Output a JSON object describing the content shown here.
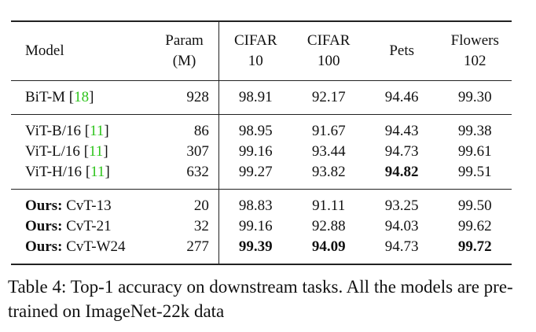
{
  "columns": [
    {
      "line1": "Model",
      "line2": ""
    },
    {
      "line1": "Param",
      "line2": "(M)"
    },
    {
      "line1": "CIFAR",
      "line2": "10"
    },
    {
      "line1": "CIFAR",
      "line2": "100"
    },
    {
      "line1": "Pets",
      "line2": ""
    },
    {
      "line1": "Flowers",
      "line2": "102"
    }
  ],
  "rows": [
    {
      "prefix": "",
      "name": "BiT-M ",
      "open": "[",
      "ref": "18",
      "close": "]",
      "param": "928",
      "cifar10": "98.91",
      "cifar100": "92.17",
      "pets": "94.46",
      "flowers": "99.30"
    },
    {
      "prefix": "",
      "name": "ViT-B/16 ",
      "open": "[",
      "ref": "11",
      "close": "]",
      "param": "86",
      "cifar10": "98.95",
      "cifar100": "91.67",
      "pets": "94.43",
      "flowers": "99.38"
    },
    {
      "prefix": "",
      "name": "ViT-L/16 ",
      "open": "[",
      "ref": "11",
      "close": "]",
      "param": "307",
      "cifar10": "99.16",
      "cifar100": "93.44",
      "pets": "94.73",
      "flowers": "99.61"
    },
    {
      "prefix": "",
      "name": "ViT-H/16 ",
      "open": "[",
      "ref": "11",
      "close": "]",
      "param": "632",
      "cifar10": "99.27",
      "cifar100": "93.82",
      "pets": "94.82",
      "flowers": "99.51"
    },
    {
      "prefix": "Ours:",
      "name": " CvT-13",
      "open": "",
      "ref": "",
      "close": "",
      "param": "20",
      "cifar10": "98.83",
      "cifar100": "91.11",
      "pets": "93.25",
      "flowers": "99.50"
    },
    {
      "prefix": "Ours:",
      "name": " CvT-21",
      "open": "",
      "ref": "",
      "close": "",
      "param": "32",
      "cifar10": "99.16",
      "cifar100": "92.88",
      "pets": "94.03",
      "flowers": "99.62"
    },
    {
      "prefix": "Ours:",
      "name": " CvT-W24",
      "open": "",
      "ref": "",
      "close": "",
      "param": "277",
      "cifar10": "99.39",
      "cifar100": "94.09",
      "pets": "94.73",
      "flowers": "99.72"
    }
  ],
  "caption": "Table 4: Top-1 accuracy on downstream tasks. All the models are pre-trained on ImageNet-22k data"
}
